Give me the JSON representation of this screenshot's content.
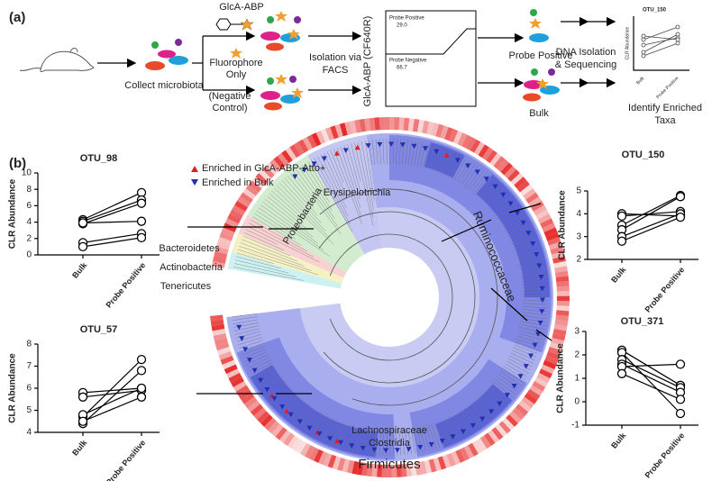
{
  "panel_a": {
    "label": "(a)",
    "collect": "Collect microbiota",
    "probe": "GlcA-ABP",
    "control_1": "Fluorophore",
    "control_2": "Only",
    "control_3": "(Negative",
    "control_4": "Control)",
    "isolation_1": "Isolation via",
    "isolation_2": "FACS",
    "facs_axis": "GlcA-ABP (CF640R)",
    "gate_pos": "Probe Positive",
    "gate_pos_pct": "29.0",
    "gate_neg": "Probe Negative",
    "gate_neg_pct": "66.7",
    "out_pos": "Probe Positive",
    "out_bulk": "Bulk",
    "dna_1": "DNA Isolation",
    "dna_2": "& Sequencing",
    "inset_title": "OTU_150",
    "inset_ylabel": "CLR Abundance",
    "inset_x1": "Bulk",
    "inset_x2": "Probe Positive",
    "identify_1": "Identify Enriched",
    "identify_2": "Taxa"
  },
  "panel_b": {
    "label": "(b)",
    "legend_up": "Enriched in GlcA-ABP-Atto+",
    "legend_down": "Enriched in Bulk",
    "taxa": [
      "Proteobacteria",
      "Erysipelotrichia",
      "Bacteroidetes",
      "Actinobacteria",
      "Tenericutes",
      "Ruminococcaceae",
      "Lachnospiraceae",
      "Clostridia",
      "Firmicutes"
    ]
  },
  "chart_data": [
    {
      "type": "line",
      "title": "OTU_98",
      "ylabel": "CLR Abundance",
      "categories": [
        "Bulk",
        "Probe Positive"
      ],
      "ylim": [
        0,
        10
      ],
      "yticks": [
        0,
        2,
        4,
        6,
        8,
        10
      ],
      "color": "#000000",
      "series": [
        {
          "values": [
            4.3,
            7.6
          ]
        },
        {
          "values": [
            4.1,
            6.7
          ]
        },
        {
          "values": [
            3.8,
            6.3
          ]
        },
        {
          "values": [
            3.9,
            4.1
          ]
        },
        {
          "values": [
            1.5,
            2.6
          ]
        },
        {
          "values": [
            1.0,
            2.1
          ]
        }
      ]
    },
    {
      "type": "line",
      "title": "OTU_57",
      "ylabel": "CLR Abundance",
      "categories": [
        "Bulk",
        "Probe Positive"
      ],
      "ylim": [
        4,
        8
      ],
      "yticks": [
        4,
        5,
        6,
        7,
        8
      ],
      "color": "#000000",
      "series": [
        {
          "values": [
            4.7,
            7.3
          ]
        },
        {
          "values": [
            4.4,
            6.8
          ]
        },
        {
          "values": [
            5.8,
            6.0
          ]
        },
        {
          "values": [
            5.6,
            5.9
          ]
        },
        {
          "values": [
            4.8,
            6.0
          ]
        },
        {
          "values": [
            4.5,
            5.6
          ]
        }
      ]
    },
    {
      "type": "line",
      "title": "OTU_150",
      "ylabel": "CLR Abundance",
      "categories": [
        "Bulk",
        "Probe Positive"
      ],
      "ylim": [
        2,
        5
      ],
      "yticks": [
        2,
        3,
        4,
        5
      ],
      "color": "#000000",
      "series": [
        {
          "values": [
            4.0,
            3.9
          ]
        },
        {
          "values": [
            3.9,
            4.1
          ]
        },
        {
          "values": [
            3.5,
            4.8
          ]
        },
        {
          "values": [
            3.3,
            4.75
          ]
        },
        {
          "values": [
            3.0,
            4.0
          ]
        },
        {
          "values": [
            2.8,
            3.85
          ]
        }
      ]
    },
    {
      "type": "line",
      "title": "OTU_371",
      "ylabel": "CLR Abundance",
      "categories": [
        "Bulk",
        "Probe Positive"
      ],
      "ylim": [
        -1,
        3
      ],
      "yticks": [
        -1,
        0,
        1,
        2,
        3
      ],
      "color": "#000000",
      "series": [
        {
          "values": [
            2.2,
            0.7
          ]
        },
        {
          "values": [
            2.1,
            -0.5
          ]
        },
        {
          "values": [
            1.8,
            0.6
          ]
        },
        {
          "values": [
            1.6,
            0.4
          ]
        },
        {
          "values": [
            1.5,
            1.6
          ]
        },
        {
          "values": [
            1.2,
            0.1
          ]
        }
      ]
    }
  ]
}
